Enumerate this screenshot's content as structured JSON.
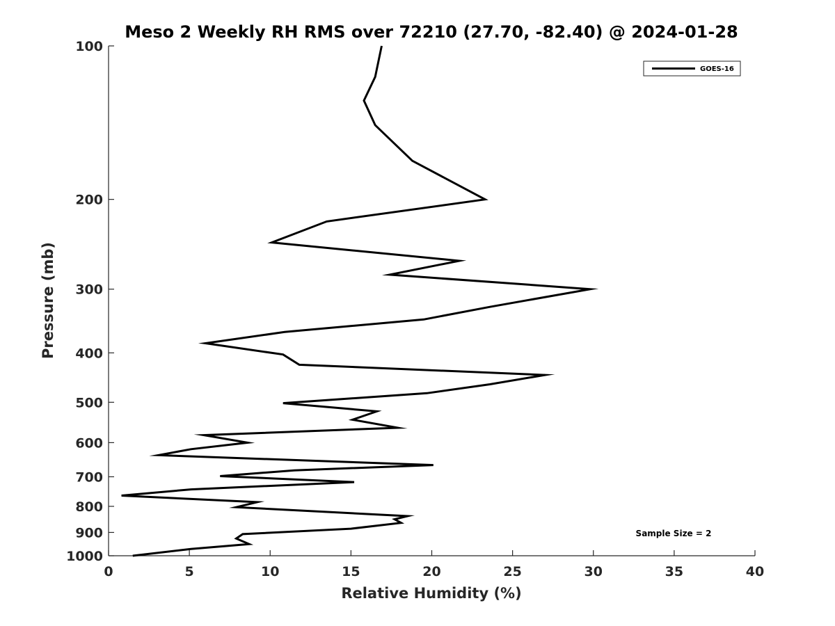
{
  "chart_data": {
    "type": "line",
    "title": "Meso 2 Weekly RH RMS over 72210 (27.70, -82.40) @ 2024-01-28",
    "xlabel": "Relative Humidity (%)",
    "ylabel": "Pressure (mb)",
    "xlim": [
      0,
      40
    ],
    "ylim": [
      1000,
      100
    ],
    "y_scale": "log",
    "y_reversed": true,
    "grid": false,
    "xticks": [
      0,
      5,
      10,
      15,
      20,
      25,
      30,
      35,
      40
    ],
    "yticks": [
      100,
      200,
      300,
      400,
      500,
      600,
      700,
      800,
      900,
      1000
    ],
    "legend": {
      "position": "top-right",
      "entries": [
        "GOES-16"
      ]
    },
    "annotation": "Sample Size = 2",
    "series": [
      {
        "name": "GOES-16",
        "color": "#000000",
        "points": [
          [
            16.9,
            100
          ],
          [
            16.5,
            115
          ],
          [
            15.8,
            128
          ],
          [
            16.5,
            143
          ],
          [
            18.8,
            168
          ],
          [
            23.3,
            200
          ],
          [
            13.5,
            221
          ],
          [
            10.1,
            243
          ],
          [
            21.7,
            264
          ],
          [
            17.4,
            281
          ],
          [
            29.8,
            300
          ],
          [
            23.6,
            325
          ],
          [
            19.5,
            344
          ],
          [
            10.9,
            364
          ],
          [
            6.0,
            383
          ],
          [
            10.8,
            403
          ],
          [
            11.8,
            422
          ],
          [
            27.0,
            442
          ],
          [
            23.6,
            461
          ],
          [
            19.7,
            480
          ],
          [
            10.8,
            502
          ],
          [
            16.6,
            521
          ],
          [
            15.1,
            541
          ],
          [
            17.9,
            561
          ],
          [
            5.9,
            580
          ],
          [
            8.6,
            600
          ],
          [
            5.1,
            618
          ],
          [
            3.1,
            635
          ],
          [
            20.1,
            664
          ],
          [
            11.5,
            680
          ],
          [
            6.9,
            698
          ],
          [
            15.2,
            717
          ],
          [
            5.1,
            741
          ],
          [
            0.8,
            762
          ],
          [
            9.2,
            785
          ],
          [
            7.9,
            803
          ],
          [
            18.5,
            836
          ],
          [
            17.7,
            848
          ],
          [
            18.1,
            862
          ],
          [
            15.0,
            885
          ],
          [
            8.3,
            907
          ],
          [
            7.9,
            925
          ],
          [
            8.7,
            949
          ],
          [
            5.1,
            970
          ],
          [
            1.5,
            1000
          ]
        ]
      }
    ]
  }
}
